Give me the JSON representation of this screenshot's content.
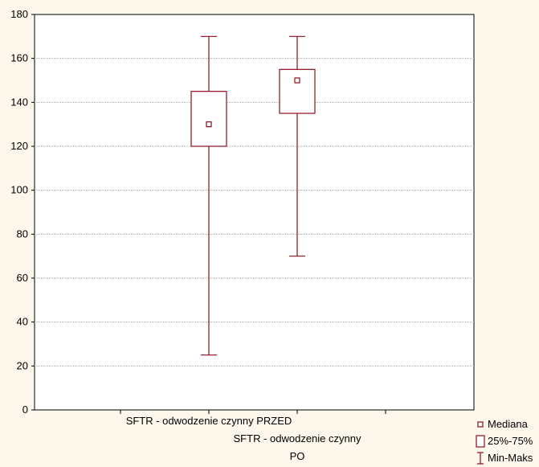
{
  "chart_data": {
    "type": "boxplot",
    "title": "",
    "xlabel": "",
    "ylabel": "",
    "ylim": [
      0,
      180
    ],
    "yticks": [
      0,
      20,
      40,
      60,
      80,
      100,
      120,
      140,
      160,
      180
    ],
    "grid": true,
    "legend_position": "bottom-right",
    "series": [
      {
        "label_lines": [
          "SFTR - odwodzenie czynny PRZED"
        ],
        "min": 25,
        "q1": 120,
        "median": 130,
        "q3": 145,
        "max": 170
      },
      {
        "label_lines": [
          "SFTR - odwodzenie czynny",
          "PO"
        ],
        "min": 70,
        "q1": 135,
        "median": 150,
        "q3": 155,
        "max": 170
      }
    ],
    "legend": [
      {
        "key": "median",
        "label": "Mediana"
      },
      {
        "key": "box",
        "label": "25%-75%"
      },
      {
        "key": "whisker",
        "label": "Min-Maks"
      }
    ],
    "colors": {
      "box_stroke": "#8b0d1a",
      "plot_background": "#ffffff",
      "page_background": "#fdf7ec",
      "grid": "#a8a8a8"
    }
  }
}
